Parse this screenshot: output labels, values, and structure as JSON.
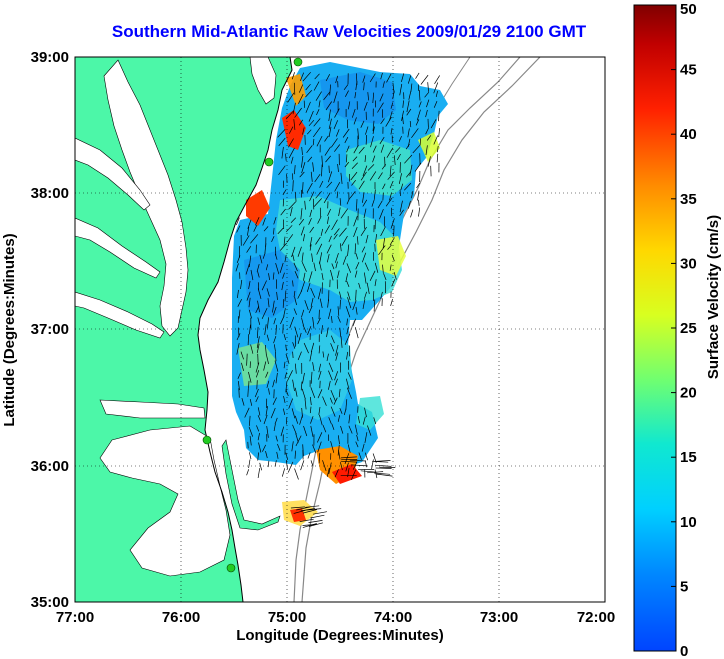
{
  "title": "Southern Mid-Atlantic Raw Velocities 2009/01/29 2100 GMT",
  "xlabel": "Longitude (Degrees:Minutes)",
  "ylabel": "Latitude (Degrees:Minutes)",
  "x_ticks": [
    "77:00",
    "76:00",
    "75:00",
    "74:00",
    "73:00",
    "72:00"
  ],
  "y_ticks": [
    "39:00",
    "38:00",
    "37:00",
    "36:00",
    "35:00"
  ],
  "colorbar": {
    "label": "Surface Velocity (cm/s)",
    "ticks": [
      "0",
      "5",
      "10",
      "15",
      "20",
      "25",
      "30",
      "35",
      "40",
      "45",
      "50"
    ],
    "range": [
      0,
      50
    ]
  },
  "colors": {
    "land": "#4cf7a8",
    "water": "#ffffff",
    "title": "#0000ff",
    "station": "#22cc22"
  },
  "extent": {
    "lon": [
      -77,
      -72
    ],
    "lat": [
      35,
      39
    ]
  }
}
